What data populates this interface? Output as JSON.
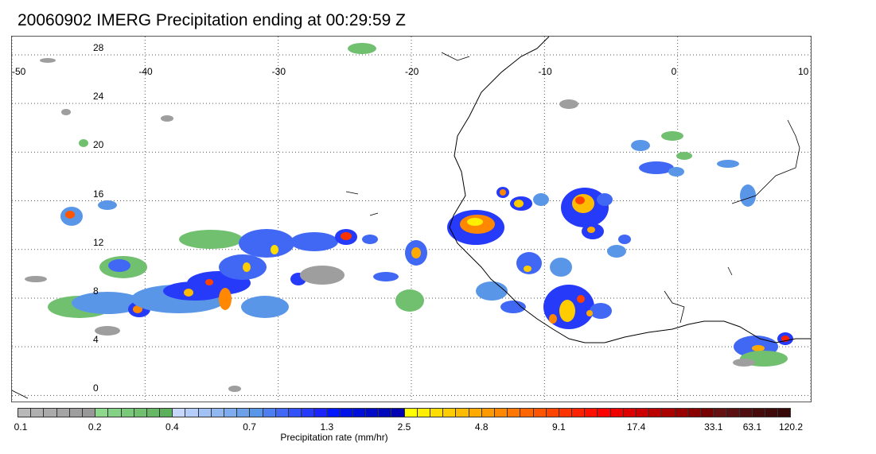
{
  "title": "20060902 IMERG Precipitation ending at 00:29:59 Z",
  "map": {
    "lon_labels": [
      "-50",
      "-40",
      "-30",
      "-20",
      "-10",
      "0",
      "10"
    ],
    "lat_labels": [
      "28",
      "24",
      "20",
      "16",
      "12",
      "8",
      "4",
      "0"
    ],
    "lon_range": [
      -50,
      10
    ],
    "lat_range": [
      -0.5,
      29.5
    ],
    "grid": "dotted"
  },
  "colorbar": {
    "caption": "Precipitation rate (mm/hr)",
    "tick_labels": [
      "0.1",
      "0.2",
      "0.4",
      "0.7",
      "1.3",
      "2.5",
      "4.8",
      "9.1",
      "17.4",
      "33.1",
      "63.1",
      "120.2"
    ],
    "colors": [
      "#b8b8b8",
      "#b0b0b0",
      "#aaaaaa",
      "#a4a4a4",
      "#9e9e9e",
      "#989898",
      "#8ed88e",
      "#84d084",
      "#7ac87a",
      "#70c070",
      "#66b866",
      "#5cb05c",
      "#c6d8ff",
      "#b4cdfa",
      "#a2c2f5",
      "#90b7f0",
      "#7eacee",
      "#6ca1ea",
      "#5a96e8",
      "#4d7ff0",
      "#4068f4",
      "#3351f8",
      "#263afa",
      "#1a24fb",
      "#0018ff",
      "#0014e8",
      "#0010d8",
      "#000cc8",
      "#0008bc",
      "#0004b0",
      "#ffff00",
      "#ffee00",
      "#ffdd00",
      "#ffcc00",
      "#ffbb00",
      "#ffaa00",
      "#ff9900",
      "#ff8800",
      "#ff7700",
      "#ff6600",
      "#ff5500",
      "#ff4400",
      "#ff3300",
      "#ff2200",
      "#ff1100",
      "#ff0000",
      "#ee0000",
      "#dd0000",
      "#cc0000",
      "#bb0000",
      "#aa0000",
      "#990000",
      "#880000",
      "#770000",
      "#661111",
      "#5a1010",
      "#500e0e",
      "#460c0c",
      "#3e0a0a",
      "#360808"
    ]
  }
}
